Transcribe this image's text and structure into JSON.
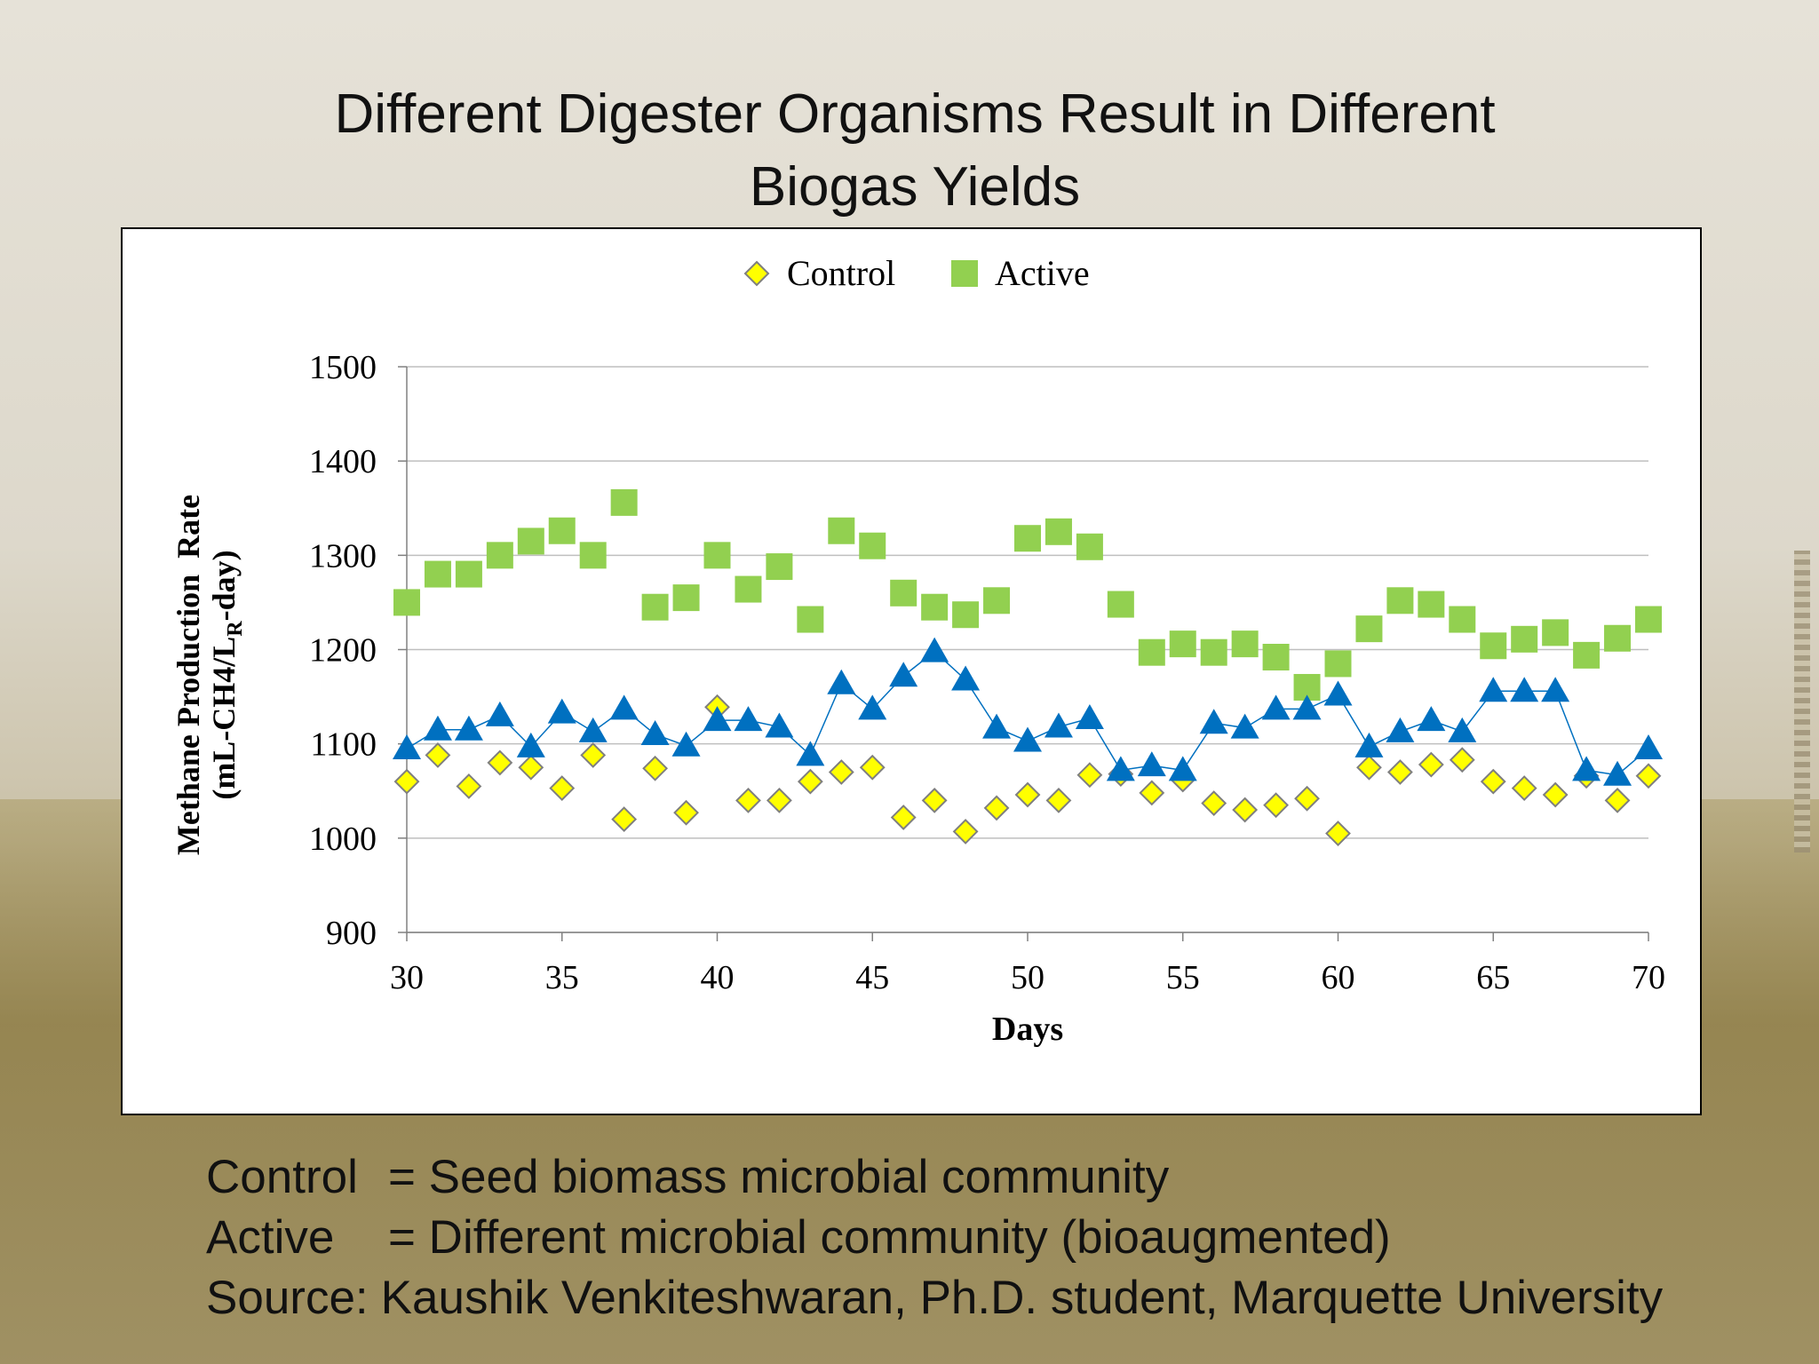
{
  "slide": {
    "title_line1": "Different Digester Organisms Result in Different",
    "title_line2": "Biogas Yields"
  },
  "footnotes": {
    "control_label": "Control",
    "control_text": "= Seed biomass microbial community",
    "active_label": "Active",
    "active_text": "= Different microbial community (bioaugmented)",
    "source_label": "Source:",
    "source_text": "Kaushik Venkiteshwaran, Ph.D. student, Marquette University"
  },
  "colors": {
    "control": "#ffff00",
    "active": "#92d050",
    "triangle": "#0070c0",
    "grid": "#bfbfbf"
  },
  "chart_data": {
    "type": "scatter",
    "xlabel": "Days",
    "ylabel_line1": "Methane Production  Rate",
    "ylabel_line2_pre": "(mL-CH4/L",
    "ylabel_line2_sub": "R",
    "ylabel_line2_post": "-day)",
    "xlim": [
      30,
      70
    ],
    "ylim": [
      900,
      1500
    ],
    "xticks": [
      "30",
      "35",
      "40",
      "45",
      "50",
      "55",
      "60",
      "65",
      "70"
    ],
    "yticks": [
      "900",
      "1000",
      "1100",
      "1200",
      "1300",
      "1400",
      "1500"
    ],
    "grid": "horizontal",
    "legend_position": "top-center",
    "series": [
      {
        "name": "Control",
        "marker": "diamond",
        "x": [
          30,
          31,
          32,
          33,
          34,
          35,
          36,
          37,
          38,
          39,
          40,
          41,
          42,
          43,
          44,
          45,
          46,
          47,
          48,
          49,
          50,
          51,
          52,
          53,
          54,
          55,
          56,
          57,
          58,
          59,
          60,
          61,
          62,
          63,
          64,
          65,
          66,
          67,
          68,
          69,
          70
        ],
        "y": [
          1060,
          1088,
          1055,
          1080,
          1075,
          1053,
          1088,
          1020,
          1074,
          1027,
          1139,
          1040,
          1040,
          1060,
          1070,
          1075,
          1022,
          1040,
          1007,
          1032,
          1046,
          1040,
          1067,
          1068,
          1048,
          1062,
          1037,
          1030,
          1035,
          1042,
          1005,
          1075,
          1070,
          1078,
          1083,
          1060,
          1053,
          1046,
          1066,
          1040,
          1066
        ]
      },
      {
        "name": "Active",
        "marker": "square",
        "x": [
          30,
          31,
          32,
          33,
          34,
          35,
          36,
          37,
          38,
          39,
          40,
          41,
          42,
          43,
          44,
          45,
          46,
          47,
          48,
          49,
          50,
          51,
          52,
          53,
          54,
          55,
          56,
          57,
          58,
          59,
          60,
          61,
          62,
          63,
          64,
          65,
          66,
          67,
          68,
          69,
          70
        ],
        "y": [
          1250,
          1280,
          1280,
          1300,
          1315,
          1326,
          1300,
          1356,
          1245,
          1255,
          1300,
          1264,
          1288,
          1232,
          1326,
          1310,
          1260,
          1245,
          1237,
          1252,
          1318,
          1325,
          1309,
          1248,
          1197,
          1206,
          1197,
          1206,
          1192,
          1160,
          1185,
          1222,
          1252,
          1248,
          1232,
          1204,
          1211,
          1218,
          1194,
          1212,
          1232
        ]
      },
      {
        "marker": "triangle",
        "connected": true,
        "x": [
          30,
          31,
          32,
          33,
          34,
          35,
          36,
          37,
          38,
          39,
          40,
          41,
          42,
          43,
          44,
          45,
          46,
          47,
          48,
          49,
          50,
          51,
          52,
          53,
          54,
          55,
          56,
          57,
          58,
          59,
          60,
          61,
          62,
          63,
          64,
          65,
          66,
          67,
          68,
          69,
          70
        ],
        "y": [
          1095,
          1115,
          1115,
          1130,
          1097,
          1133,
          1113,
          1137,
          1110,
          1098,
          1125,
          1125,
          1118,
          1088,
          1164,
          1137,
          1172,
          1198,
          1168,
          1117,
          1103,
          1118,
          1127,
          1072,
          1077,
          1072,
          1122,
          1117,
          1137,
          1137,
          1152,
          1097,
          1113,
          1125,
          1113,
          1156,
          1156,
          1156,
          1072,
          1067,
          1095
        ]
      }
    ]
  }
}
